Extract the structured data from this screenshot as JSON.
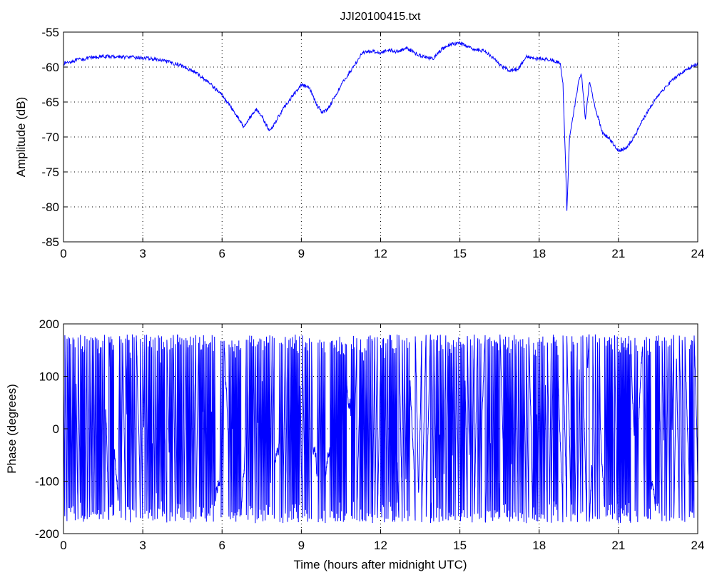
{
  "chart_data": [
    {
      "type": "line",
      "title": "JJI20100415.txt",
      "xlabel": "",
      "ylabel": "Amplitude (dB)",
      "xlim": [
        0,
        24
      ],
      "ylim": [
        -85,
        -55
      ],
      "xticks": [
        0,
        3,
        6,
        9,
        12,
        15,
        18,
        21,
        24
      ],
      "yticks": [
        -85,
        -80,
        -75,
        -70,
        -65,
        -60,
        -55
      ],
      "grid": true,
      "color": "#0000ff",
      "series": [
        {
          "x": [
            0,
            0.5,
            1,
            1.5,
            2,
            2.5,
            3,
            3.5,
            4,
            4.5,
            5,
            5.5,
            6,
            6.3,
            6.6,
            6.8,
            7.0,
            7.3,
            7.5,
            7.8,
            8.0,
            8.3,
            8.6,
            9.0,
            9.3,
            9.6,
            9.8,
            10.0,
            10.3,
            10.6,
            11.0,
            11.3,
            11.7,
            12.0,
            12.3,
            12.6,
            13.0,
            13.3,
            13.6,
            14.0,
            14.3,
            14.6,
            15.0,
            15.3,
            15.6,
            16.0,
            16.3,
            16.6,
            16.9,
            17.2,
            17.5,
            17.8,
            18.1,
            18.5,
            18.8,
            18.9,
            19.0,
            19.05,
            19.15,
            19.3,
            19.5,
            19.6,
            19.75,
            19.9,
            20.1,
            20.4,
            20.6,
            20.8,
            21.0,
            21.3,
            21.6,
            22.0,
            22.5,
            23.0,
            23.5,
            24.0
          ],
          "y": [
            -59.5,
            -59.0,
            -58.7,
            -58.5,
            -58.5,
            -58.6,
            -58.7,
            -58.9,
            -59.3,
            -59.8,
            -60.8,
            -62.2,
            -64.0,
            -65.5,
            -67.2,
            -68.5,
            -67.5,
            -66.0,
            -67.0,
            -69.2,
            -68.0,
            -66.0,
            -64.5,
            -62.5,
            -63.0,
            -65.5,
            -66.5,
            -66.0,
            -64.0,
            -62.0,
            -59.8,
            -58.0,
            -57.7,
            -58.0,
            -57.5,
            -57.8,
            -57.3,
            -58.0,
            -58.5,
            -58.8,
            -57.5,
            -56.8,
            -56.5,
            -57.2,
            -57.5,
            -57.8,
            -58.8,
            -60.0,
            -60.5,
            -60.3,
            -58.5,
            -58.8,
            -58.8,
            -59.0,
            -59.5,
            -62.5,
            -74.0,
            -80.5,
            -70.0,
            -66.5,
            -62.0,
            -61.0,
            -67.5,
            -62.0,
            -65.5,
            -69.5,
            -70.0,
            -71.0,
            -72.0,
            -71.5,
            -70.0,
            -67.0,
            -64.0,
            -62.0,
            -60.5,
            -59.5
          ]
        }
      ]
    },
    {
      "type": "line",
      "title": "",
      "xlabel": "Time (hours after midnight UTC)",
      "ylabel": "Phase (degrees)",
      "xlim": [
        0,
        24
      ],
      "ylim": [
        -200,
        200
      ],
      "xticks": [
        0,
        3,
        6,
        9,
        12,
        15,
        18,
        21,
        24
      ],
      "yticks": [
        -200,
        -100,
        0,
        100,
        200
      ],
      "grid": true,
      "color": "#0000ff",
      "series": [
        {
          "x_start": 0,
          "x_end": 24,
          "y_min": -180,
          "y_max": 180,
          "wrap_count": 440,
          "seed": 20100415
        }
      ]
    }
  ]
}
